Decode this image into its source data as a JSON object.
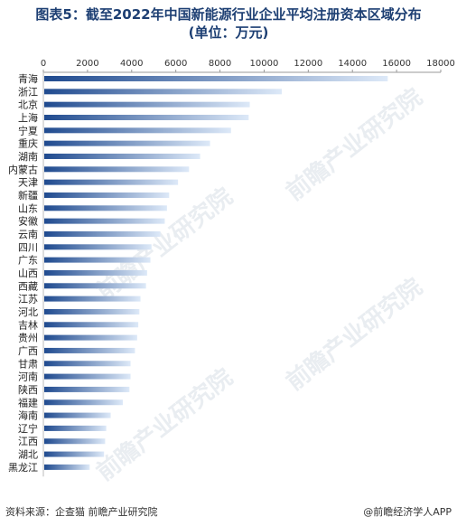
{
  "header": {
    "title_line1": "图表5：截至2022年中国新能源行业企业平均注册资本区域分布",
    "title_line2": "(单位：万元)"
  },
  "footer": {
    "source": "资料来源：企查猫 前瞻产业研究院",
    "brand": "@前瞻经济学人APP"
  },
  "watermark": "前瞻产业研究院",
  "colors": {
    "bar_dark": "#1f4a8f",
    "bar_light": "#dde9f8",
    "axis": "#999999"
  },
  "chart_data": {
    "type": "bar",
    "orientation": "horizontal",
    "categories": [
      "青海",
      "浙江",
      "北京",
      "上海",
      "宁夏",
      "重庆",
      "湖南",
      "内蒙古",
      "天津",
      "新疆",
      "山东",
      "安徽",
      "云南",
      "四川",
      "广东",
      "山西",
      "西藏",
      "江苏",
      "河北",
      "吉林",
      "贵州",
      "广西",
      "甘肃",
      "河南",
      "陕西",
      "福建",
      "海南",
      "辽宁",
      "江西",
      "湖北",
      "黑龙江"
    ],
    "values": [
      15600,
      10800,
      9350,
      9300,
      8500,
      7550,
      7100,
      6600,
      6100,
      5700,
      5600,
      5500,
      5300,
      4900,
      4850,
      4700,
      4650,
      4400,
      4350,
      4300,
      4250,
      4150,
      3950,
      3950,
      3900,
      3600,
      3050,
      2850,
      2800,
      2750,
      2100
    ],
    "xaxis_ticks": [
      0,
      2000,
      4000,
      6000,
      8000,
      10000,
      12000,
      14000,
      16000,
      18000
    ],
    "xlim": [
      0,
      18000
    ],
    "axis_position": "top",
    "grid": false,
    "legend": "none"
  }
}
